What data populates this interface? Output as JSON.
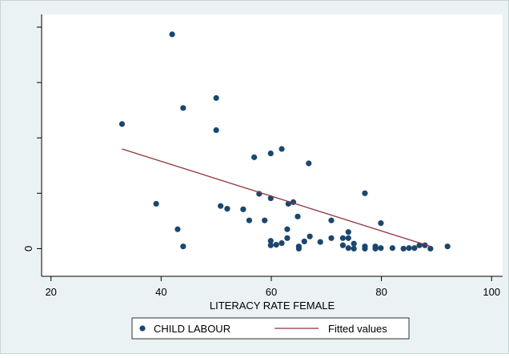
{
  "chart_data": {
    "type": "scatter",
    "xlabel": "LITERACY RATE FEMALE",
    "xlim": [
      18.3,
      102
    ],
    "xticks": [
      20,
      40,
      60,
      80,
      100
    ],
    "ylim": [
      -5,
      42.3
    ],
    "yticks": [
      0
    ],
    "yminor_ticks": [
      10,
      20,
      30,
      40
    ],
    "legend": "bottom",
    "series": [
      {
        "name": "CHILD LABOUR",
        "type": "scatter",
        "color": "#1a476f",
        "x": [
          32.9,
          42.0,
          44.0,
          50.0,
          50.0,
          39.1,
          43.0,
          44.0,
          56.9,
          59.9,
          61.9,
          66.8,
          57.8,
          59.9,
          50.8,
          52.0,
          54.9,
          56.0,
          58.8,
          63.1,
          64.0,
          64.8,
          62.9,
          62.9,
          59.9,
          59.9,
          60.9,
          61.9,
          65.0,
          65.0,
          66.0,
          67.0,
          68.9,
          70.9,
          70.9,
          73.0,
          74.0,
          74.0,
          73.0,
          74.0,
          75.0,
          75.0,
          77.0,
          77.0,
          77.0,
          78.9,
          78.9,
          79.9,
          79.9,
          82.0,
          84.0,
          85.0,
          86.0,
          86.9,
          87.9,
          88.9,
          92.0
        ],
        "values": [
          22.5,
          38.7,
          25.4,
          27.2,
          21.4,
          8.1,
          3.5,
          0.4,
          16.5,
          17.2,
          18.0,
          15.4,
          9.9,
          9.1,
          7.7,
          7.2,
          7.1,
          5.1,
          5.1,
          8.1,
          8.4,
          5.8,
          3.5,
          1.9,
          1.4,
          0.6,
          0.7,
          1.0,
          0.4,
          0,
          1.3,
          2.2,
          1.2,
          5.1,
          1.9,
          1.9,
          3.0,
          1.9,
          0.6,
          0.1,
          0.9,
          0,
          10.0,
          0.4,
          0,
          0.4,
          0,
          4.6,
          0.1,
          0.1,
          0,
          0.1,
          0.1,
          0.6,
          0.6,
          0,
          0.4
        ]
      },
      {
        "name": "Fitted values",
        "type": "line",
        "color": "#90353b",
        "x": [
          32.9,
          88.9
        ],
        "values": [
          18.0,
          0.4
        ]
      }
    ]
  }
}
